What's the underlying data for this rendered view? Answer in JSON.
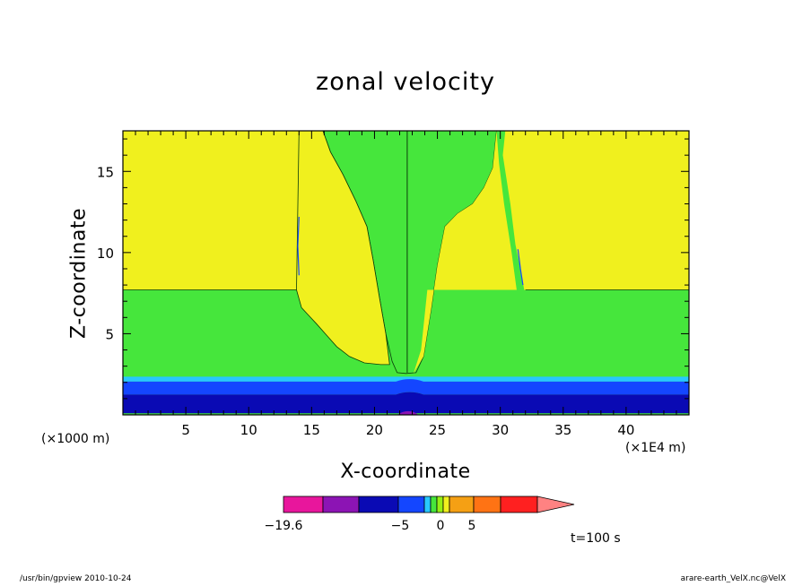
{
  "chart_data": {
    "type": "contour",
    "title": "zonal velocity",
    "xlabel": "X-coordinate",
    "ylabel": "Z-coordinate",
    "x_scale_note": "(×1E4 m)",
    "y_scale_note": "(×1000 m)",
    "xlim": [
      0,
      45
    ],
    "ylim": [
      0,
      17.5
    ],
    "x_ticks": [
      5,
      10,
      15,
      20,
      25,
      30,
      35,
      40
    ],
    "y_ticks": [
      5,
      10,
      15
    ],
    "colorbar": {
      "tick_labels": [
        {
          "value": -19.6,
          "label": "−19.6"
        },
        {
          "value": -5,
          "label": "−5"
        },
        {
          "value": 0,
          "label": "0"
        },
        {
          "value": 5,
          "label": "5"
        }
      ],
      "colors": [
        "#e8169c",
        "#8c14b4",
        "#0a0ab4",
        "#1446ff",
        "#28c8ff",
        "#46e63c",
        "#96f014",
        "#f0f01e",
        "#f5a014",
        "#ff7314",
        "#ff2020",
        "#ff8282"
      ],
      "extend": "right"
    },
    "time_label": "t=100 s"
  },
  "footer": {
    "left": "/usr/bin/gpview   2010-10-24",
    "right": "arare-earth_VelX.nc@VelX"
  }
}
